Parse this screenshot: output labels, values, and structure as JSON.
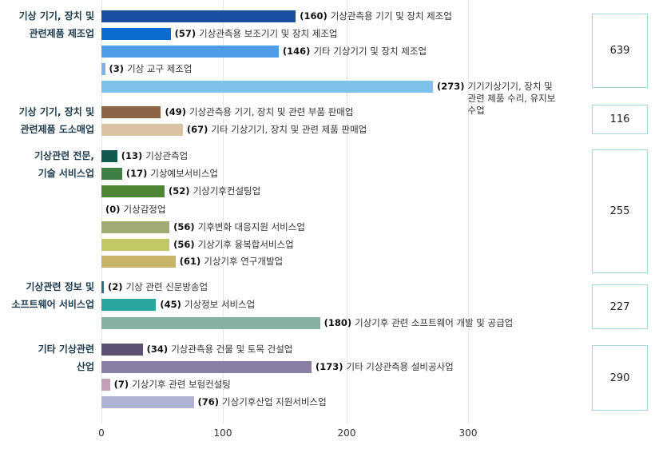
{
  "chart_data": {
    "type": "bar",
    "orientation": "horizontal",
    "xlim": [
      0,
      350
    ],
    "xticks": [
      "0",
      "100",
      "200",
      "300"
    ],
    "grid": true,
    "groups": [
      {
        "label_lines": [
          "기상 기기, 장치 및",
          "관련제품 제조업"
        ],
        "total": "639",
        "items": [
          {
            "name": "기상관측용 기기 및 장치 제조업",
            "value": 160,
            "color": "#1a4fa0"
          },
          {
            "name": "기상관측용 보조기기 및 장치 제조업",
            "value": 57,
            "color": "#0b6cd0"
          },
          {
            "name": "기타 기상기기 및 장치 제조업",
            "value": 146,
            "color": "#4f9de8"
          },
          {
            "name": "기상 교구 제조업",
            "value": 3,
            "color": "#7eb0ea"
          },
          {
            "name": "기기기상기기, 장치 및 관련 제품 수리, 유지보수업",
            "value": 273,
            "color": "#7ec2ea"
          }
        ]
      },
      {
        "label_lines": [
          "기상 기기, 장치 및",
          "관련제품 도소매업"
        ],
        "total": "116",
        "items": [
          {
            "name": "기상관측용 기기, 장치 및 관련 부품 판매업",
            "value": 49,
            "color": "#8b6443"
          },
          {
            "name": "기타 기상기기, 장치 및 관련 제품 판매업",
            "value": 67,
            "color": "#d9c3a3"
          }
        ]
      },
      {
        "label_lines": [
          "기상관련 전문,",
          "기술 서비스업"
        ],
        "total": "255",
        "items": [
          {
            "name": "기상관측업",
            "value": 13,
            "color": "#12594f"
          },
          {
            "name": "기상예보서비스업",
            "value": 17,
            "color": "#3f7f46"
          },
          {
            "name": "기상기후컨설팅업",
            "value": 52,
            "color": "#4f8737"
          },
          {
            "name": "기상감정업",
            "value": 0,
            "color": "#4f8737"
          },
          {
            "name": "기후변화 대응지원 서비스업",
            "value": 56,
            "color": "#a0ab74"
          },
          {
            "name": "기상기후 융복합서비스업",
            "value": 56,
            "color": "#c3c866"
          },
          {
            "name": "기상기후 연구개발업",
            "value": 61,
            "color": "#c7b466"
          }
        ]
      },
      {
        "label_lines": [
          "기상관련 정보 및",
          "소프트웨어 서비스업"
        ],
        "total": "227",
        "items": [
          {
            "name": "기상 관련 신문방송업",
            "value": 2,
            "color": "#1a7a8a"
          },
          {
            "name": "기상정보 서비스업",
            "value": 45,
            "color": "#2aa6a0"
          },
          {
            "name": "기상기후 관련 소프트웨어 개발 및 공급업",
            "value": 180,
            "color": "#86b0a2"
          }
        ]
      },
      {
        "label_lines": [
          "기타 기상관련",
          "산업"
        ],
        "total": "290",
        "items": [
          {
            "name": "기상관측용 건물 및 토목 건설업",
            "value": 34,
            "color": "#5d5274"
          },
          {
            "name": "기타 기상관측용 설비공사업",
            "value": 173,
            "color": "#8a7fa3"
          },
          {
            "name": "기상기후 관련 보험컨설팅",
            "value": 7,
            "color": "#c4a0b8"
          },
          {
            "name": "기상기후산업 지원서비스업",
            "value": 76,
            "color": "#b0b3d6"
          }
        ]
      }
    ]
  }
}
